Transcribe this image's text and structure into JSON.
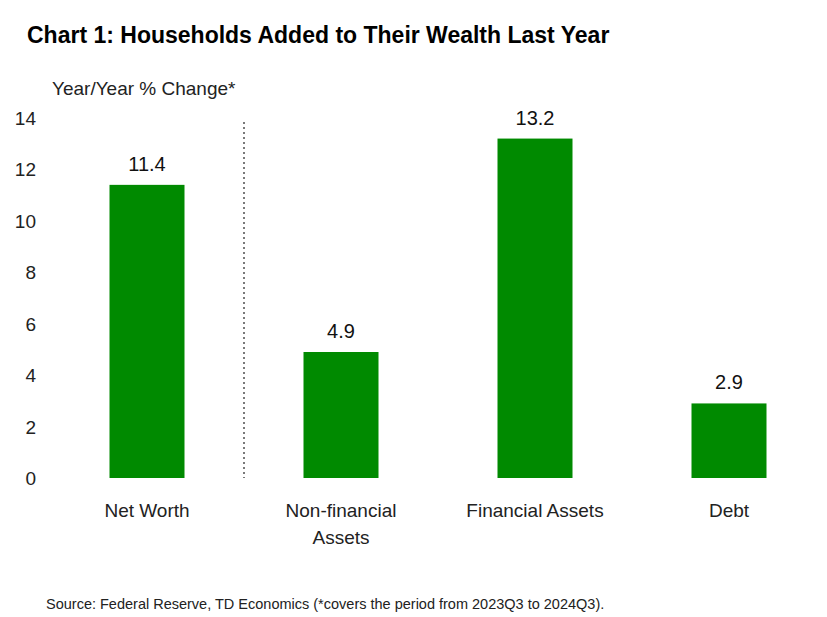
{
  "chart_data": {
    "type": "bar",
    "title": "Chart 1: Households Added to Their Wealth Last Year",
    "y_label": "Year/Year % Change*",
    "categories": [
      "Net Worth",
      "Non-financial Assets",
      "Financial Assets",
      "Debt"
    ],
    "values": [
      11.4,
      4.9,
      13.2,
      2.9
    ],
    "color": "#008a00",
    "ylim": [
      0,
      14
    ],
    "yticks": [
      0,
      2,
      4,
      6,
      8,
      10,
      12,
      14
    ],
    "grid": false,
    "data_labels": true,
    "source": "Source:  Federal Reserve, TD Economics (*covers the period from 2023Q3 to 2024Q3)."
  }
}
